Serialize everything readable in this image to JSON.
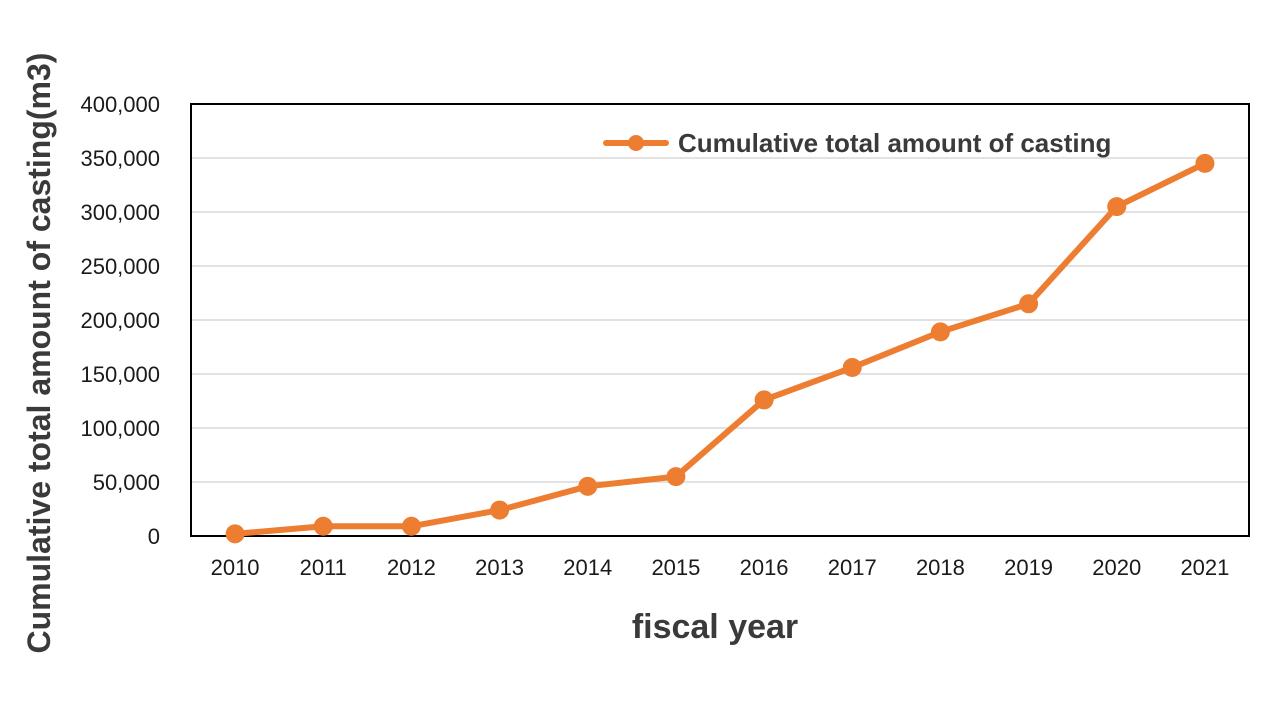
{
  "chart_data": {
    "type": "line",
    "title": "",
    "xlabel": "fiscal year",
    "ylabel": "Cumulative total amount of casting(m3)",
    "x": [
      "2010",
      "2011",
      "2012",
      "2013",
      "2014",
      "2015",
      "2016",
      "2017",
      "2018",
      "2019",
      "2020",
      "2021"
    ],
    "series": [
      {
        "name": "Cumulative total amount of casting",
        "color": "#ed7d31",
        "values": [
          2000,
          9000,
          9000,
          24000,
          46000,
          55000,
          126000,
          156000,
          189000,
          215000,
          305000,
          345000
        ]
      }
    ],
    "ylim": [
      0,
      400000
    ],
    "yticks": [
      "0",
      "50,000",
      "100,000",
      "150,000",
      "200,000",
      "250,000",
      "300,000",
      "350,000",
      "400,000"
    ],
    "grid": true,
    "legend_position": "top-right"
  }
}
